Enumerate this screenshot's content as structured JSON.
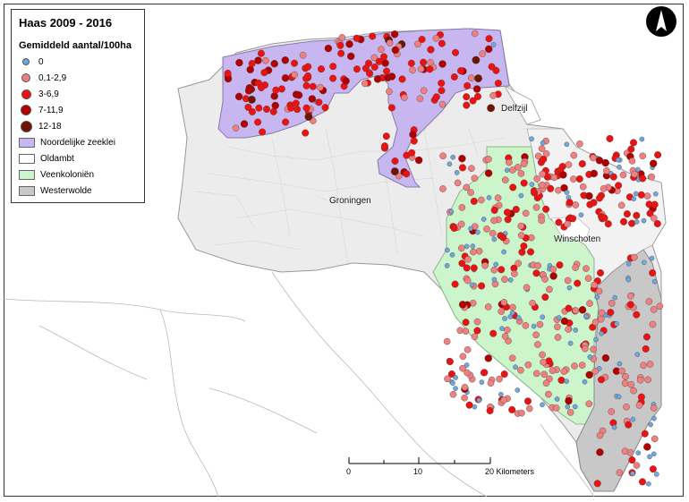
{
  "legend": {
    "title": "Haas 2009 - 2016",
    "subtitle": "Gemiddeld aantal/100ha",
    "classes": [
      {
        "label": "0",
        "color": "#6fa8dc"
      },
      {
        "label": "0,1-2,9",
        "color": "#f08080"
      },
      {
        "label": "3-6,9",
        "color": "#ee1111"
      },
      {
        "label": "7-11,9",
        "color": "#b00000"
      },
      {
        "label": "12-18",
        "color": "#6e1400"
      }
    ],
    "regions": [
      {
        "label": "Noordelijke zeeklei",
        "color": "#c8b6f0"
      },
      {
        "label": "Oldambt",
        "color": "#ffffff"
      },
      {
        "label": "Veenkoloniën",
        "color": "#ccf5cc"
      },
      {
        "label": "Westerwolde",
        "color": "#c8c8c8"
      }
    ]
  },
  "places": {
    "groningen": "Groningen",
    "delfzijl": "Delfzijl",
    "winschoten": "Winschoten"
  },
  "scale_bar": {
    "ticks": [
      "0",
      "10",
      "20 Kilometers"
    ]
  },
  "north_arrow": {
    "icon": "north-arrow-icon"
  },
  "colors": {
    "province_fill": "#ececec",
    "border": "#9a9a9a"
  }
}
